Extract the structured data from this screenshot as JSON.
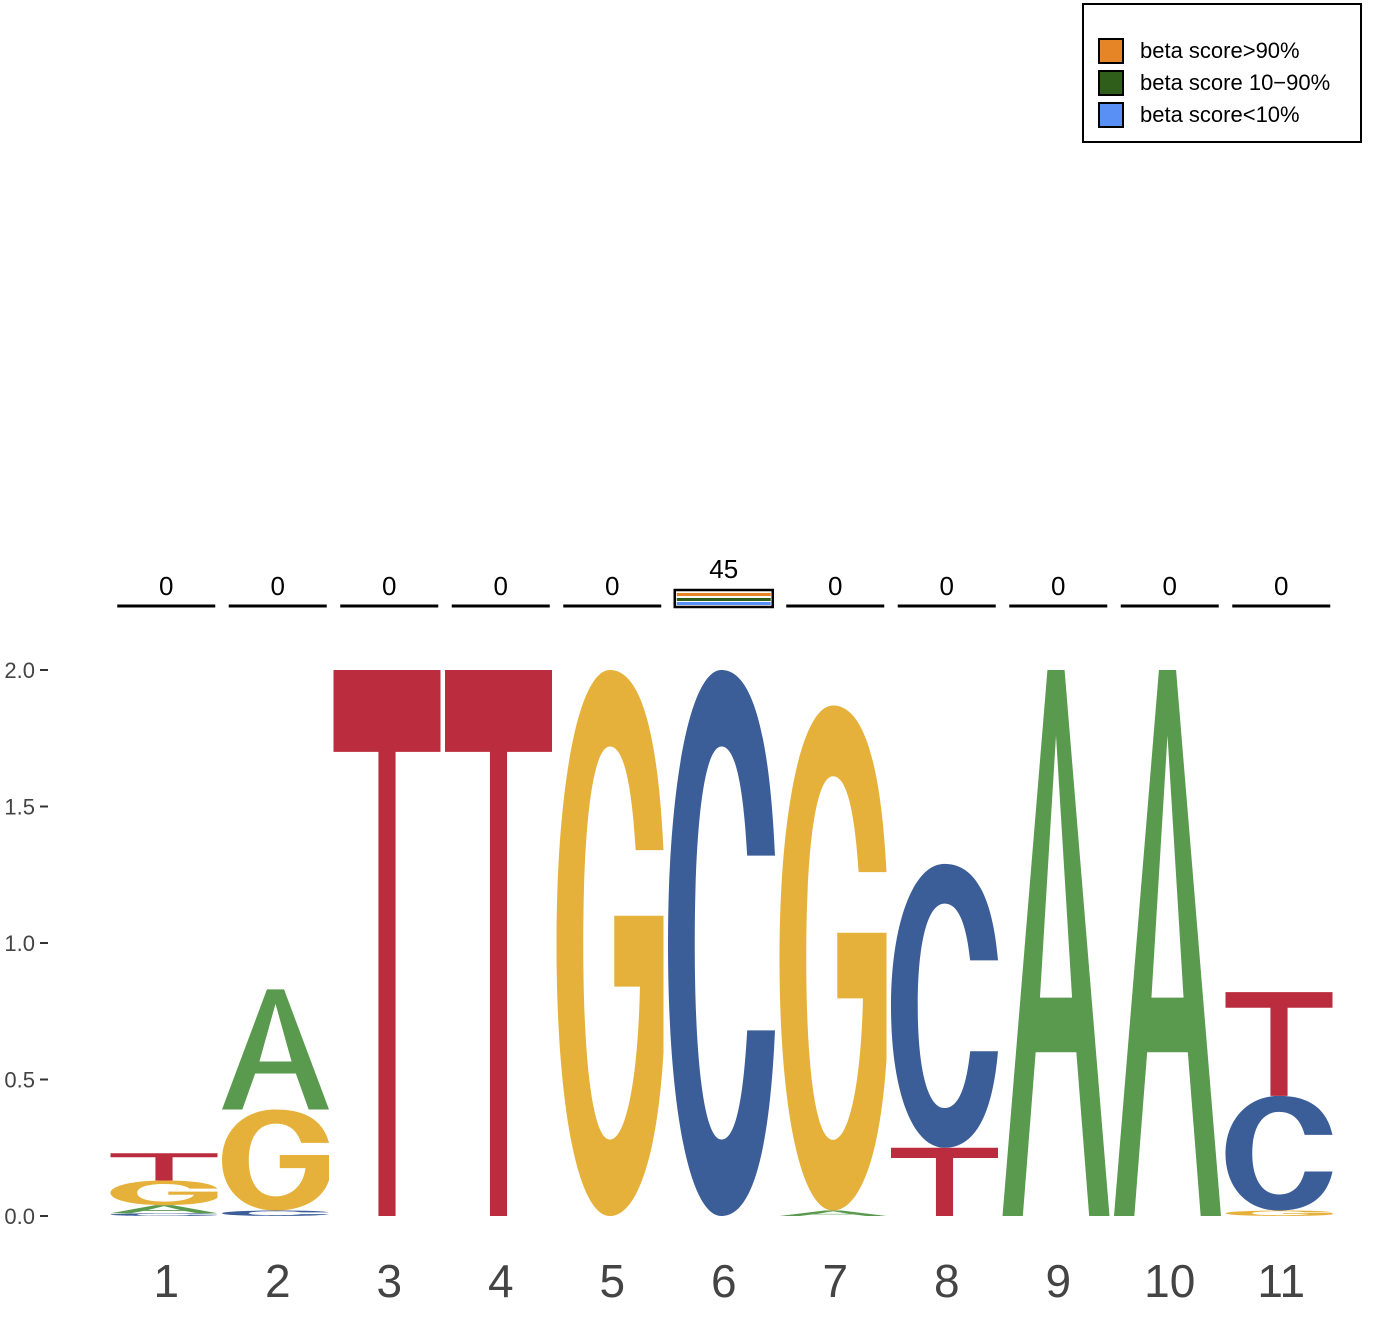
{
  "chart_data": {
    "type": "sequence-logo",
    "title": "",
    "xlabel": "",
    "ylabel": "",
    "ylim": [
      0,
      2.0
    ],
    "yticks": [
      0.0,
      0.5,
      1.0,
      1.5,
      2.0
    ],
    "ytick_labels": [
      "0.0",
      "0.5",
      "1.0",
      "1.5",
      "2.0"
    ],
    "positions": [
      "1",
      "2",
      "3",
      "4",
      "5",
      "6",
      "7",
      "8",
      "9",
      "10",
      "11"
    ],
    "letter_colors": {
      "A": "#5a9a4e",
      "C": "#3c5e98",
      "G": "#e5b13a",
      "T": "#ba2c3e"
    },
    "letters": [
      [
        {
          "base": "C",
          "height": 0.01
        },
        {
          "base": "A",
          "height": 0.03
        },
        {
          "base": "G",
          "height": 0.09
        },
        {
          "base": "T",
          "height": 0.1
        }
      ],
      [
        {
          "base": "C",
          "height": 0.02
        },
        {
          "base": "G",
          "height": 0.37
        },
        {
          "base": "A",
          "height": 0.44
        }
      ],
      [
        {
          "base": "T",
          "height": 2.0
        }
      ],
      [
        {
          "base": "T",
          "height": 2.0
        }
      ],
      [
        {
          "base": "G",
          "height": 2.0
        }
      ],
      [
        {
          "base": "C",
          "height": 2.0
        }
      ],
      [
        {
          "base": "A",
          "height": 0.02
        },
        {
          "base": "G",
          "height": 1.85
        }
      ],
      [
        {
          "base": "T",
          "height": 0.25
        },
        {
          "base": "C",
          "height": 1.04
        }
      ],
      [
        {
          "base": "A",
          "height": 2.0
        }
      ],
      [
        {
          "base": "A",
          "height": 2.0
        }
      ],
      [
        {
          "base": "G",
          "height": 0.02
        },
        {
          "base": "C",
          "height": 0.42
        },
        {
          "base": "T",
          "height": 0.38
        }
      ]
    ],
    "annotation_counts": [
      "0",
      "0",
      "0",
      "0",
      "0",
      "45",
      "0",
      "0",
      "0",
      "0",
      "0"
    ],
    "legend": {
      "placement": "top-right",
      "items": [
        {
          "label": "beta score>90%",
          "color": "#e68526"
        },
        {
          "label": "beta score 10−90%",
          "color": "#2e5e19"
        },
        {
          "label": "beta score<10%",
          "color": "#5890f5"
        }
      ]
    }
  }
}
